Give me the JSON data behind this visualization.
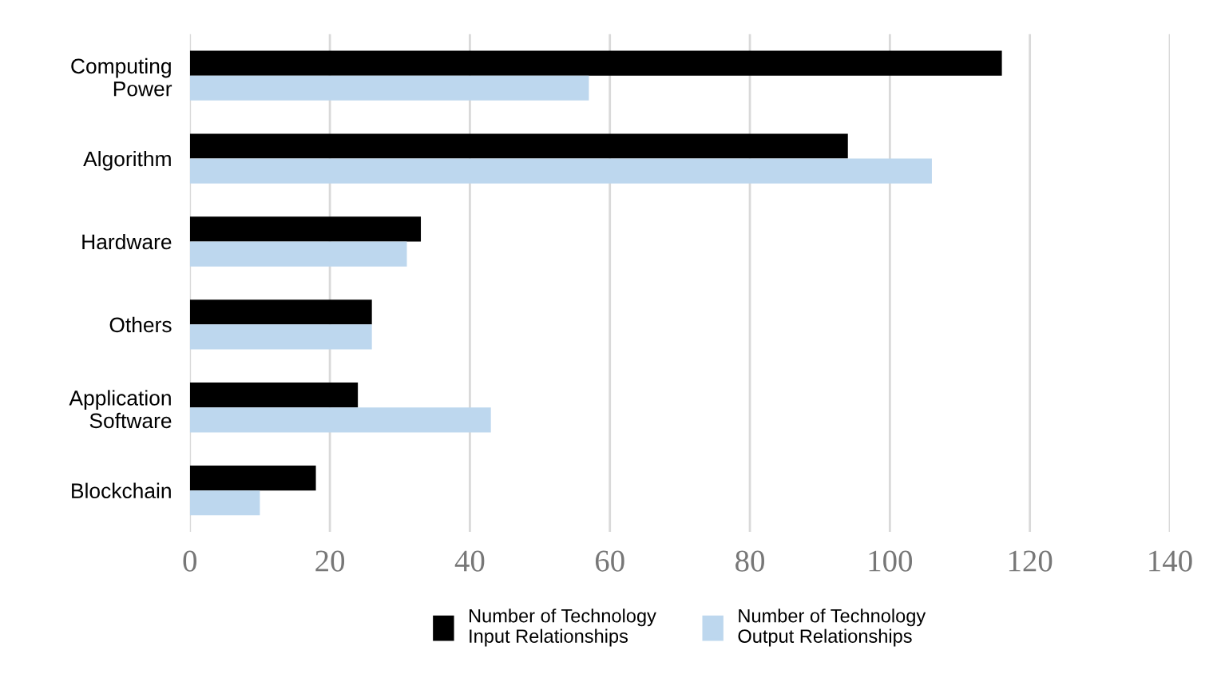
{
  "chart_data": {
    "type": "bar",
    "orientation": "horizontal",
    "categories": [
      "Computing Power",
      "Algorithm",
      "Hardware",
      "Others",
      "Application Software",
      "Blockchain"
    ],
    "series": [
      {
        "name": "Number of Technology Input Relationships",
        "color": "#000000",
        "values": [
          116,
          94,
          33,
          26,
          24,
          18
        ]
      },
      {
        "name": "Number of Technology Output Relationships",
        "color": "#bdd7ee",
        "values": [
          57,
          106,
          31,
          26,
          43,
          10
        ]
      }
    ],
    "xlim": [
      0,
      140
    ],
    "xticks": [
      0,
      20,
      40,
      60,
      80,
      100,
      120,
      140
    ],
    "grid": "x",
    "legend": "bottom"
  }
}
